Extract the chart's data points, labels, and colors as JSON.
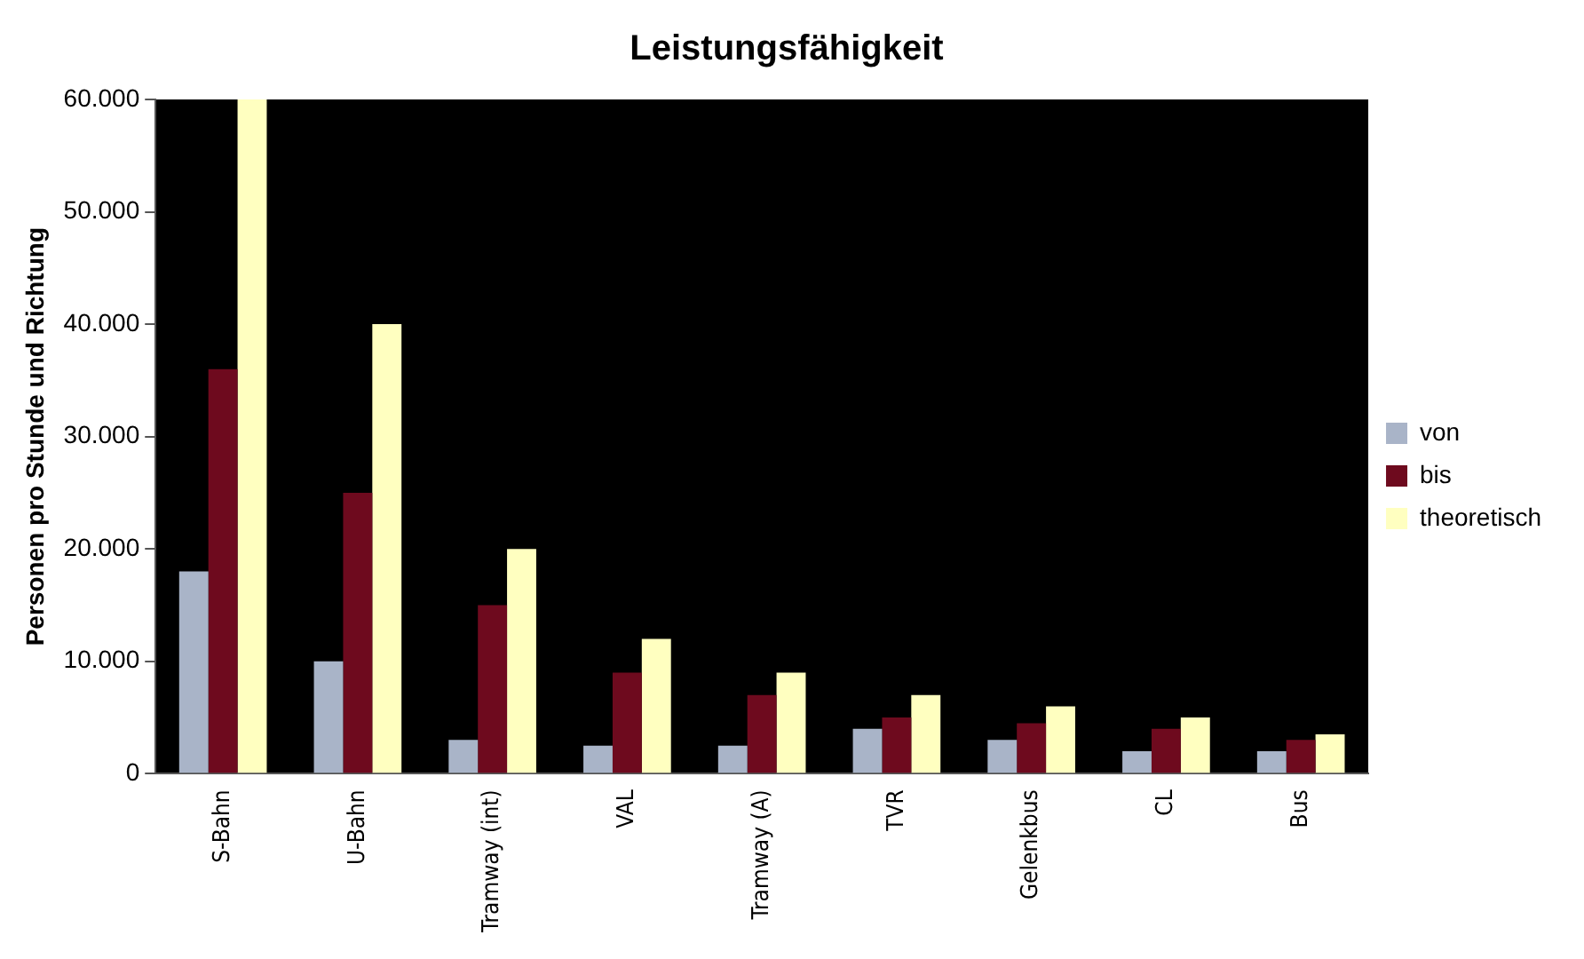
{
  "chart_data": {
    "type": "bar",
    "title": "Leistungsfähigkeit",
    "ylabel": "Personen pro Stunde und Richtung",
    "categories": [
      "S-Bahn",
      "U-Bahn",
      "Tramway (int)",
      "VAL",
      "Tramway (A)",
      "TVR",
      "Gelenkbus",
      "CL",
      "Bus"
    ],
    "series": [
      {
        "name": "von",
        "color": "#a9b4c8",
        "values": [
          18000,
          10000,
          3000,
          2500,
          2500,
          4000,
          3000,
          2000,
          2000
        ]
      },
      {
        "name": "bis",
        "color": "#6e0a1e",
        "values": [
          36000,
          25000,
          15000,
          9000,
          7000,
          5000,
          4500,
          4000,
          3000
        ]
      },
      {
        "name": "theoretisch",
        "color": "#ffffc0",
        "values": [
          60000,
          40000,
          20000,
          12000,
          9000,
          7000,
          6000,
          5000,
          3500
        ]
      }
    ],
    "ylim": [
      0,
      60000
    ],
    "yticks": [
      {
        "value": 0,
        "label": "0"
      },
      {
        "value": 10000,
        "label": "10.000"
      },
      {
        "value": 20000,
        "label": "20.000"
      },
      {
        "value": 30000,
        "label": "30.000"
      },
      {
        "value": 40000,
        "label": "40.000"
      },
      {
        "value": 50000,
        "label": "50.000"
      },
      {
        "value": 60000,
        "label": "60.000"
      }
    ],
    "grid": false,
    "legend": "right"
  }
}
